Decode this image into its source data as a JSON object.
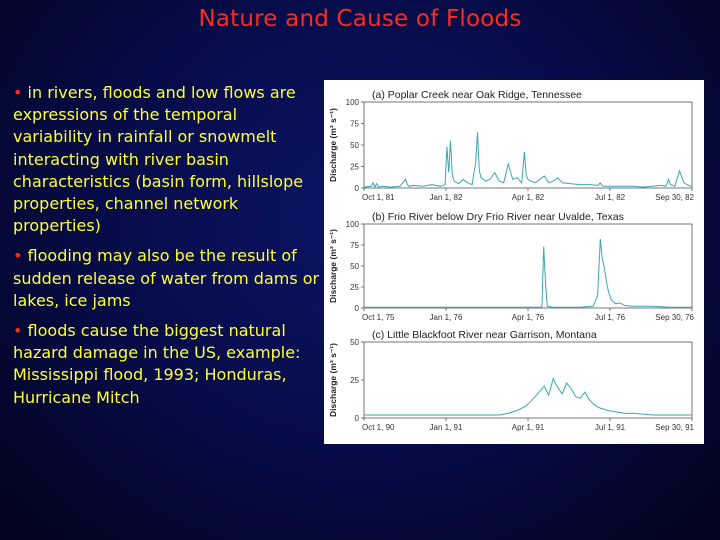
{
  "slide": {
    "title": "Nature and Cause of Floods",
    "bullets": [
      "in rivers, floods and low flows are expressions of the temporal variability in rainfall or snowmelt interacting with river basin characteristics (basin form, hillslope properties, channel network properties)",
      "flooding may also be the result of sudden release of water from dams or lakes, ice jams",
      "floods cause the biggest natural hazard damage in the US, example: Mississippi flood, 1993; Honduras, Hurricane Mitch"
    ],
    "bullet_marker": "•"
  },
  "colors": {
    "title": "#ff2a1a",
    "text": "#ffff33",
    "background": "#060b45",
    "line": "#3aa6b8"
  },
  "chart_data": [
    {
      "type": "line",
      "title": "(a) Poplar Creek near Oak Ridge, Tennessee",
      "ylabel": "Discharge (m³ s⁻¹)",
      "ylim": [
        0,
        100
      ],
      "yticks": [
        0,
        25,
        50,
        75,
        100
      ],
      "xticks": [
        "Oct 1, 81",
        "Jan 1, 82",
        "Apr 1, 82",
        "Jul 1, 82",
        "Sep 30, 82"
      ],
      "x_range_days": 364,
      "series": [
        {
          "x": [
            0,
            8,
            10,
            12,
            14,
            16,
            20,
            30,
            40,
            46,
            48,
            50,
            55,
            65,
            75,
            85,
            90,
            92,
            94,
            96,
            98,
            100,
            105,
            110,
            115,
            120,
            124,
            126,
            128,
            130,
            135,
            140,
            145,
            150,
            155,
            160,
            165,
            170,
            175,
            178,
            180,
            182,
            185,
            190,
            195,
            200,
            205,
            210,
            215,
            220,
            230,
            240,
            250,
            260,
            262,
            264,
            266,
            270,
            280,
            290,
            300,
            310,
            320,
            330,
            335,
            338,
            340,
            345,
            350,
            355,
            360,
            364
          ],
          "y": [
            1,
            2,
            6,
            1,
            5,
            1,
            2,
            1,
            2,
            10,
            4,
            2,
            3,
            2,
            4,
            2,
            4,
            48,
            18,
            55,
            15,
            8,
            5,
            10,
            6,
            4,
            30,
            65,
            20,
            12,
            8,
            10,
            18,
            8,
            6,
            28,
            10,
            12,
            6,
            42,
            15,
            10,
            8,
            6,
            10,
            14,
            6,
            8,
            12,
            6,
            5,
            4,
            4,
            3,
            6,
            3,
            2,
            2,
            2,
            2,
            2,
            1,
            2,
            3,
            2,
            10,
            4,
            2,
            20,
            6,
            3,
            2
          ]
        }
      ]
    },
    {
      "type": "line",
      "title": "(b) Frio River below Dry Frio River near Uvalde, Texas",
      "ylabel": "Discharge (m³ s⁻¹)",
      "ylim": [
        0,
        100
      ],
      "yticks": [
        0,
        25,
        50,
        75,
        100
      ],
      "xticks": [
        "Oct 1, 75",
        "Jan 1, 76",
        "Apr 1, 76",
        "Jul 1, 76",
        "Sep 30, 76"
      ],
      "x_range_days": 365,
      "series": [
        {
          "x": [
            0,
            30,
            60,
            90,
            120,
            150,
            180,
            198,
            200,
            202,
            204,
            210,
            240,
            255,
            260,
            263,
            265,
            268,
            270,
            272,
            275,
            280,
            285,
            290,
            300,
            320,
            340,
            365
          ],
          "y": [
            1,
            1,
            1,
            1,
            1,
            1,
            1,
            1,
            73,
            30,
            2,
            1,
            1,
            2,
            15,
            82,
            60,
            45,
            30,
            20,
            10,
            5,
            6,
            3,
            2,
            2,
            1,
            1
          ]
        }
      ]
    },
    {
      "type": "line",
      "title": "(c) Little Blackfoot River near Garrison, Montana",
      "ylabel": "Discharge (m³ s⁻¹)",
      "ylim": [
        0,
        50
      ],
      "yticks": [
        0,
        25,
        50
      ],
      "xticks": [
        "Oct 1, 90",
        "Jan 1, 91",
        "Apr 1, 91",
        "Jul 1, 91",
        "Sep 30, 91"
      ],
      "x_range_days": 364,
      "series": [
        {
          "x": [
            0,
            30,
            60,
            90,
            120,
            150,
            160,
            170,
            180,
            190,
            200,
            205,
            210,
            215,
            220,
            225,
            230,
            235,
            240,
            245,
            250,
            255,
            260,
            265,
            270,
            280,
            290,
            300,
            320,
            340,
            364
          ],
          "y": [
            2,
            2,
            2,
            2,
            2,
            2,
            3,
            5,
            8,
            14,
            21,
            15,
            26,
            20,
            16,
            23,
            19,
            14,
            13,
            17,
            12,
            9,
            7,
            6,
            5,
            4,
            3,
            3,
            2,
            2,
            2
          ]
        }
      ]
    }
  ]
}
